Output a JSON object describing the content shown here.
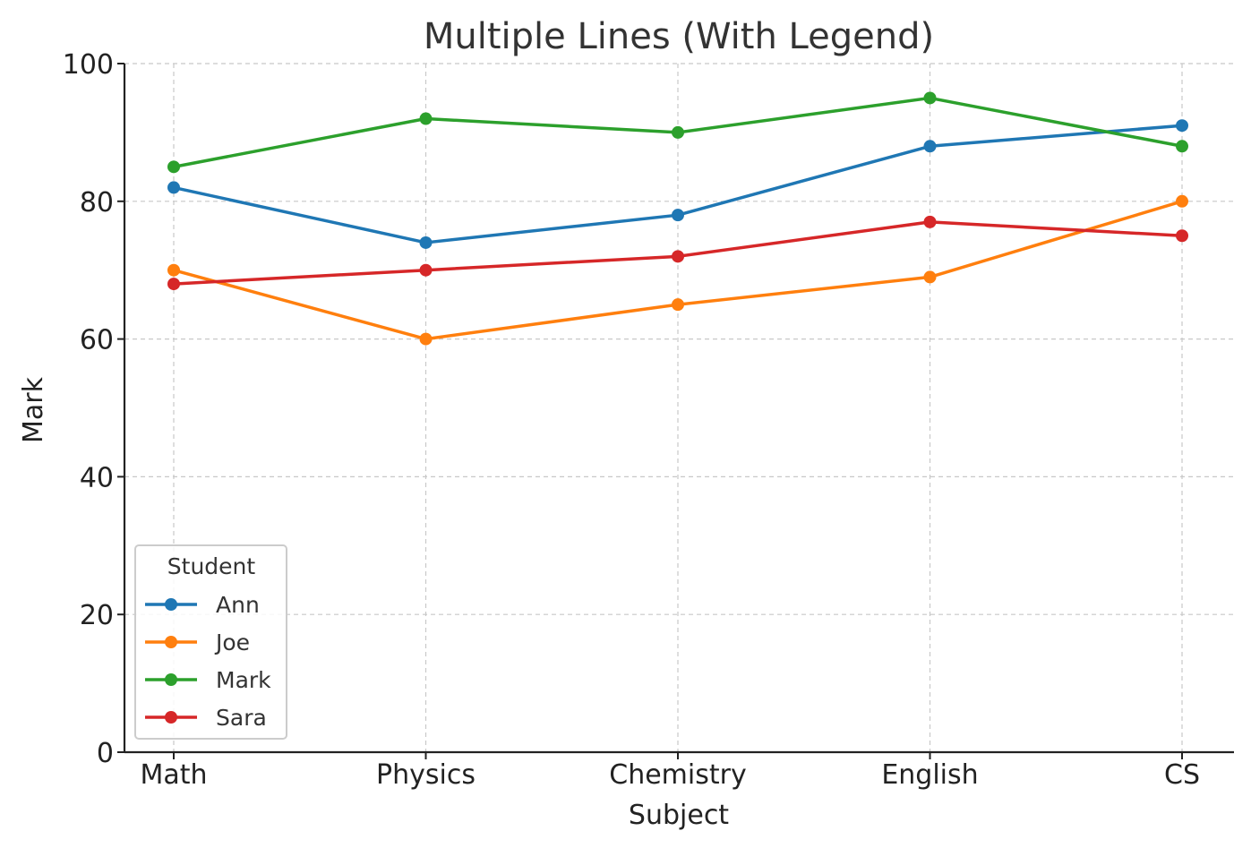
{
  "chart_data": {
    "type": "line",
    "title": "Multiple Lines (With Legend)",
    "xlabel": "Subject",
    "ylabel": "Mark",
    "categories": [
      "Math",
      "Physics",
      "Chemistry",
      "English",
      "CS"
    ],
    "ylim": [
      0,
      100
    ],
    "yticks": [
      0,
      20,
      40,
      60,
      80,
      100
    ],
    "grid": true,
    "legend": {
      "title": "Student",
      "position": "lower-left"
    },
    "series": [
      {
        "name": "Ann",
        "color": "#1f77b4",
        "values": [
          82,
          74,
          78,
          88,
          91
        ]
      },
      {
        "name": "Joe",
        "color": "#ff7f0e",
        "values": [
          70,
          60,
          65,
          69,
          80
        ]
      },
      {
        "name": "Mark",
        "color": "#2ca02c",
        "values": [
          85,
          92,
          90,
          95,
          88
        ]
      },
      {
        "name": "Sara",
        "color": "#d62728",
        "values": [
          68,
          70,
          72,
          77,
          75
        ]
      }
    ],
    "marker": "circle"
  }
}
